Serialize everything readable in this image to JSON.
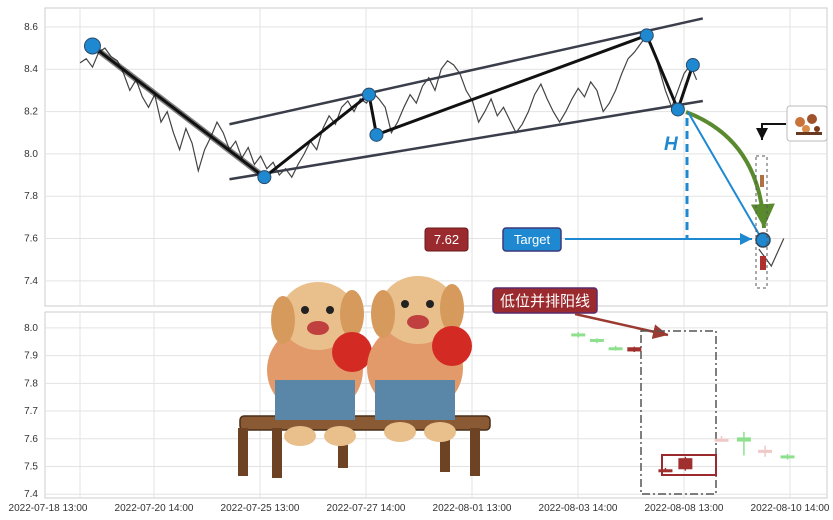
{
  "chart_data": {
    "type": "line",
    "title": "",
    "price_axis": {
      "ylim": [
        7.3,
        8.68
      ],
      "ticks": [
        "8.6",
        "8.4",
        "8.2",
        "8.0",
        "7.8",
        "7.6",
        "7.4"
      ]
    },
    "volume_axis": {
      "ylim": [
        7.39,
        8.05
      ],
      "ticks": [
        "8.0",
        "7.9",
        "7.8",
        "7.7",
        "7.6",
        "7.5",
        "7.4"
      ]
    },
    "x_tick_labels": [
      "2022-07-18 13:00",
      "2022-07-20 14:00",
      "2022-07-25 13:00",
      "2022-07-27 14:00",
      "2022-08-01 13:00",
      "2022-08-03 14:00",
      "2022-08-08 13:00",
      "2022-08-10 14:00"
    ],
    "grid": true,
    "price_series": [
      {
        "x": 0,
        "y": 8.43
      },
      {
        "x": 0.5,
        "y": 8.45
      },
      {
        "x": 1,
        "y": 8.41
      },
      {
        "x": 1.5,
        "y": 8.48
      },
      {
        "x": 2,
        "y": 8.5
      },
      {
        "x": 2.5,
        "y": 8.46
      },
      {
        "x": 3,
        "y": 8.44
      },
      {
        "x": 3.5,
        "y": 8.38
      },
      {
        "x": 4,
        "y": 8.3
      },
      {
        "x": 4.5,
        "y": 8.35
      },
      {
        "x": 5,
        "y": 8.27
      },
      {
        "x": 5.5,
        "y": 8.22
      },
      {
        "x": 6,
        "y": 8.28
      },
      {
        "x": 6.5,
        "y": 8.15
      },
      {
        "x": 7,
        "y": 8.2
      },
      {
        "x": 7.5,
        "y": 8.1
      },
      {
        "x": 8,
        "y": 8.02
      },
      {
        "x": 8.5,
        "y": 8.12
      },
      {
        "x": 9,
        "y": 8.05
      },
      {
        "x": 9.5,
        "y": 7.92
      },
      {
        "x": 10,
        "y": 8.02
      },
      {
        "x": 10.5,
        "y": 8.08
      },
      {
        "x": 11,
        "y": 8.15
      },
      {
        "x": 11.5,
        "y": 8.1
      },
      {
        "x": 12,
        "y": 8.02
      },
      {
        "x": 12.5,
        "y": 8.06
      },
      {
        "x": 13,
        "y": 7.98
      },
      {
        "x": 13.5,
        "y": 8.03
      },
      {
        "x": 14,
        "y": 7.95
      },
      {
        "x": 14.5,
        "y": 7.99
      },
      {
        "x": 15,
        "y": 7.93
      },
      {
        "x": 15.5,
        "y": 7.96
      },
      {
        "x": 16,
        "y": 7.9
      },
      {
        "x": 16.5,
        "y": 7.93
      },
      {
        "x": 17,
        "y": 7.89
      },
      {
        "x": 17.5,
        "y": 7.95
      },
      {
        "x": 18,
        "y": 8.0
      },
      {
        "x": 18.5,
        "y": 8.06
      },
      {
        "x": 19,
        "y": 8.02
      },
      {
        "x": 19.5,
        "y": 8.12
      },
      {
        "x": 20,
        "y": 8.18
      },
      {
        "x": 20.5,
        "y": 8.14
      },
      {
        "x": 21,
        "y": 8.22
      },
      {
        "x": 21.5,
        "y": 8.25
      },
      {
        "x": 22,
        "y": 8.2
      },
      {
        "x": 22.5,
        "y": 8.26
      },
      {
        "x": 23,
        "y": 8.24
      },
      {
        "x": 23.5,
        "y": 8.29
      },
      {
        "x": 24,
        "y": 8.26
      },
      {
        "x": 24.5,
        "y": 8.22
      },
      {
        "x": 25,
        "y": 8.1
      },
      {
        "x": 25.5,
        "y": 8.15
      },
      {
        "x": 26,
        "y": 8.22
      },
      {
        "x": 26.5,
        "y": 8.28
      },
      {
        "x": 27,
        "y": 8.24
      },
      {
        "x": 27.5,
        "y": 8.32
      },
      {
        "x": 28,
        "y": 8.36
      },
      {
        "x": 28.5,
        "y": 8.3
      },
      {
        "x": 29,
        "y": 8.4
      },
      {
        "x": 29.5,
        "y": 8.44
      },
      {
        "x": 30,
        "y": 8.42
      },
      {
        "x": 30.5,
        "y": 8.38
      },
      {
        "x": 31,
        "y": 8.3
      },
      {
        "x": 31.5,
        "y": 8.25
      },
      {
        "x": 32,
        "y": 8.15
      },
      {
        "x": 32.5,
        "y": 8.2
      },
      {
        "x": 33,
        "y": 8.26
      },
      {
        "x": 33.5,
        "y": 8.18
      },
      {
        "x": 34,
        "y": 8.22
      },
      {
        "x": 34.5,
        "y": 8.16
      },
      {
        "x": 35,
        "y": 8.1
      },
      {
        "x": 35.5,
        "y": 8.14
      },
      {
        "x": 36,
        "y": 8.2
      },
      {
        "x": 36.5,
        "y": 8.28
      },
      {
        "x": 37,
        "y": 8.33
      },
      {
        "x": 37.5,
        "y": 8.26
      },
      {
        "x": 38,
        "y": 8.2
      },
      {
        "x": 38.5,
        "y": 8.15
      },
      {
        "x": 39,
        "y": 8.2
      },
      {
        "x": 39.5,
        "y": 8.26
      },
      {
        "x": 40,
        "y": 8.31
      },
      {
        "x": 40.5,
        "y": 8.27
      },
      {
        "x": 41,
        "y": 8.34
      },
      {
        "x": 41.5,
        "y": 8.3
      },
      {
        "x": 42,
        "y": 8.2
      },
      {
        "x": 42.5,
        "y": 8.24
      },
      {
        "x": 43,
        "y": 8.3
      },
      {
        "x": 43.5,
        "y": 8.38
      },
      {
        "x": 44,
        "y": 8.45
      },
      {
        "x": 44.5,
        "y": 8.48
      },
      {
        "x": 45,
        "y": 8.52
      },
      {
        "x": 45.5,
        "y": 8.56
      },
      {
        "x": 46,
        "y": 8.5
      },
      {
        "x": 46.5,
        "y": 8.4
      },
      {
        "x": 47,
        "y": 8.3
      },
      {
        "x": 47.5,
        "y": 8.22
      },
      {
        "x": 48,
        "y": 8.3
      },
      {
        "x": 48.5,
        "y": 8.38
      },
      {
        "x": 49,
        "y": 8.42
      },
      {
        "x": 49.5,
        "y": 8.35
      }
    ],
    "pattern_points": [
      {
        "x": 1,
        "y": 8.51
      },
      {
        "x": 14.8,
        "y": 7.89
      },
      {
        "x": 23.2,
        "y": 8.28
      },
      {
        "x": 23.8,
        "y": 8.09
      },
      {
        "x": 45.5,
        "y": 8.56
      },
      {
        "x": 48.0,
        "y": 8.21
      },
      {
        "x": 49.2,
        "y": 8.42
      }
    ],
    "upper_channel": [
      {
        "x": 12,
        "y": 8.14
      },
      {
        "x": 50,
        "y": 8.64
      }
    ],
    "lower_channel": [
      {
        "x": 12,
        "y": 7.88
      },
      {
        "x": 50,
        "y": 8.25
      }
    ],
    "target_point": {
      "x": 54,
      "y": 7.62
    },
    "target_label": "Target",
    "price_badge": "7.62",
    "height_label": "H",
    "pattern_label": "低位并排阳线",
    "candles": [
      {
        "x": 40,
        "open": 7.97,
        "close": 7.98,
        "high": 7.985,
        "low": 7.965,
        "color": "#8ee08e"
      },
      {
        "x": 41.5,
        "open": 7.95,
        "close": 7.96,
        "high": 7.962,
        "low": 7.945,
        "color": "#8ee08e"
      },
      {
        "x": 43,
        "open": 7.925,
        "close": 7.93,
        "high": 7.935,
        "low": 7.918,
        "color": "#8ee08e"
      },
      {
        "x": 44.5,
        "open": 7.915,
        "close": 7.93,
        "high": 7.932,
        "low": 7.913,
        "color": "#a0302e"
      },
      {
        "x": 47.0,
        "open": 7.485,
        "close": 7.49,
        "high": 7.495,
        "low": 7.48,
        "color": "#a0302e"
      },
      {
        "x": 48.6,
        "open": 7.49,
        "close": 7.53,
        "high": 7.535,
        "low": 7.485,
        "color": "#a0302e"
      },
      {
        "x": 51.5,
        "open": 7.595,
        "close": 7.6,
        "high": 7.61,
        "low": 7.59,
        "color": "#f0c8c8"
      },
      {
        "x": 53.3,
        "open": 7.59,
        "close": 7.605,
        "high": 7.625,
        "low": 7.54,
        "color": "#8ee08e"
      },
      {
        "x": 55.0,
        "open": 7.555,
        "close": 7.56,
        "high": 7.575,
        "low": 7.535,
        "color": "#f0c8c8"
      },
      {
        "x": 56.8,
        "open": 7.53,
        "close": 7.54,
        "high": 7.545,
        "low": 7.525,
        "color": "#8ee08e"
      }
    ]
  }
}
